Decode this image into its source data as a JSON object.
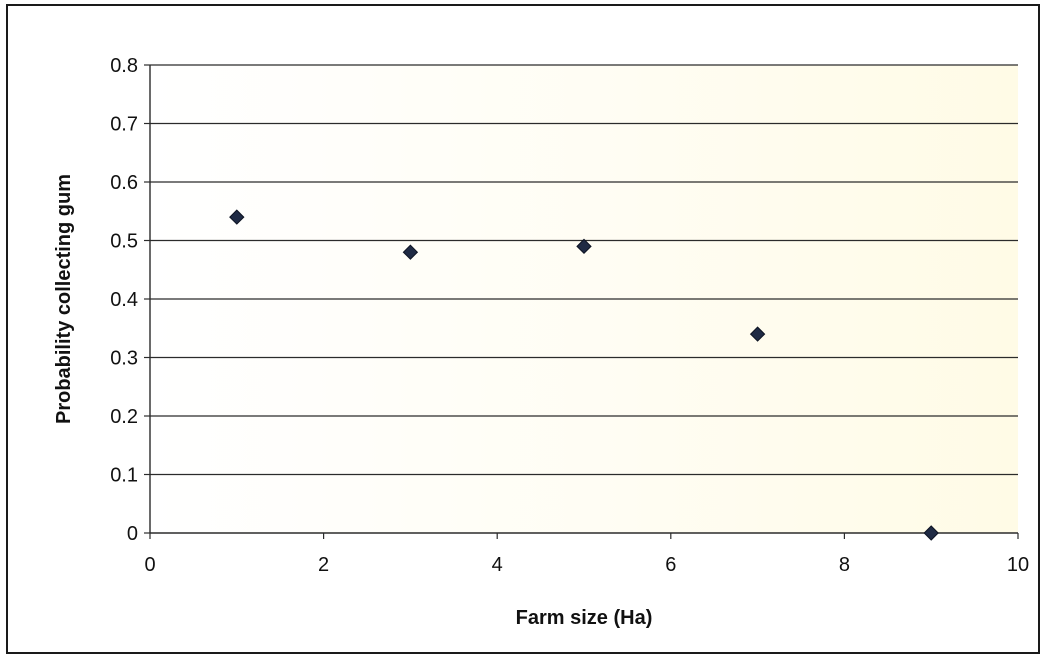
{
  "chart_data": {
    "type": "scatter",
    "title": "",
    "xlabel": "Farm size (Ha)",
    "ylabel": "Probability collecting gum",
    "xlim": [
      0,
      10
    ],
    "ylim": [
      0,
      0.8
    ],
    "x_ticks": [
      "0",
      "2",
      "4",
      "6",
      "8",
      "10"
    ],
    "y_ticks": [
      "0",
      "0.1",
      "0.2",
      "0.3",
      "0.4",
      "0.5",
      "0.6",
      "0.7",
      "0.8"
    ],
    "grid": "horizontal",
    "legend": "none",
    "marker": "diamond",
    "colors": {
      "marker": "#1f2a44",
      "gridline": "#2b2b2b",
      "axis": "#2b2b2b",
      "plot_bg_right": "#fffbe6"
    },
    "series": [
      {
        "x": [
          1,
          3,
          5,
          7,
          9
        ],
        "y": [
          0.54,
          0.48,
          0.49,
          0.34,
          0.0
        ]
      }
    ]
  }
}
